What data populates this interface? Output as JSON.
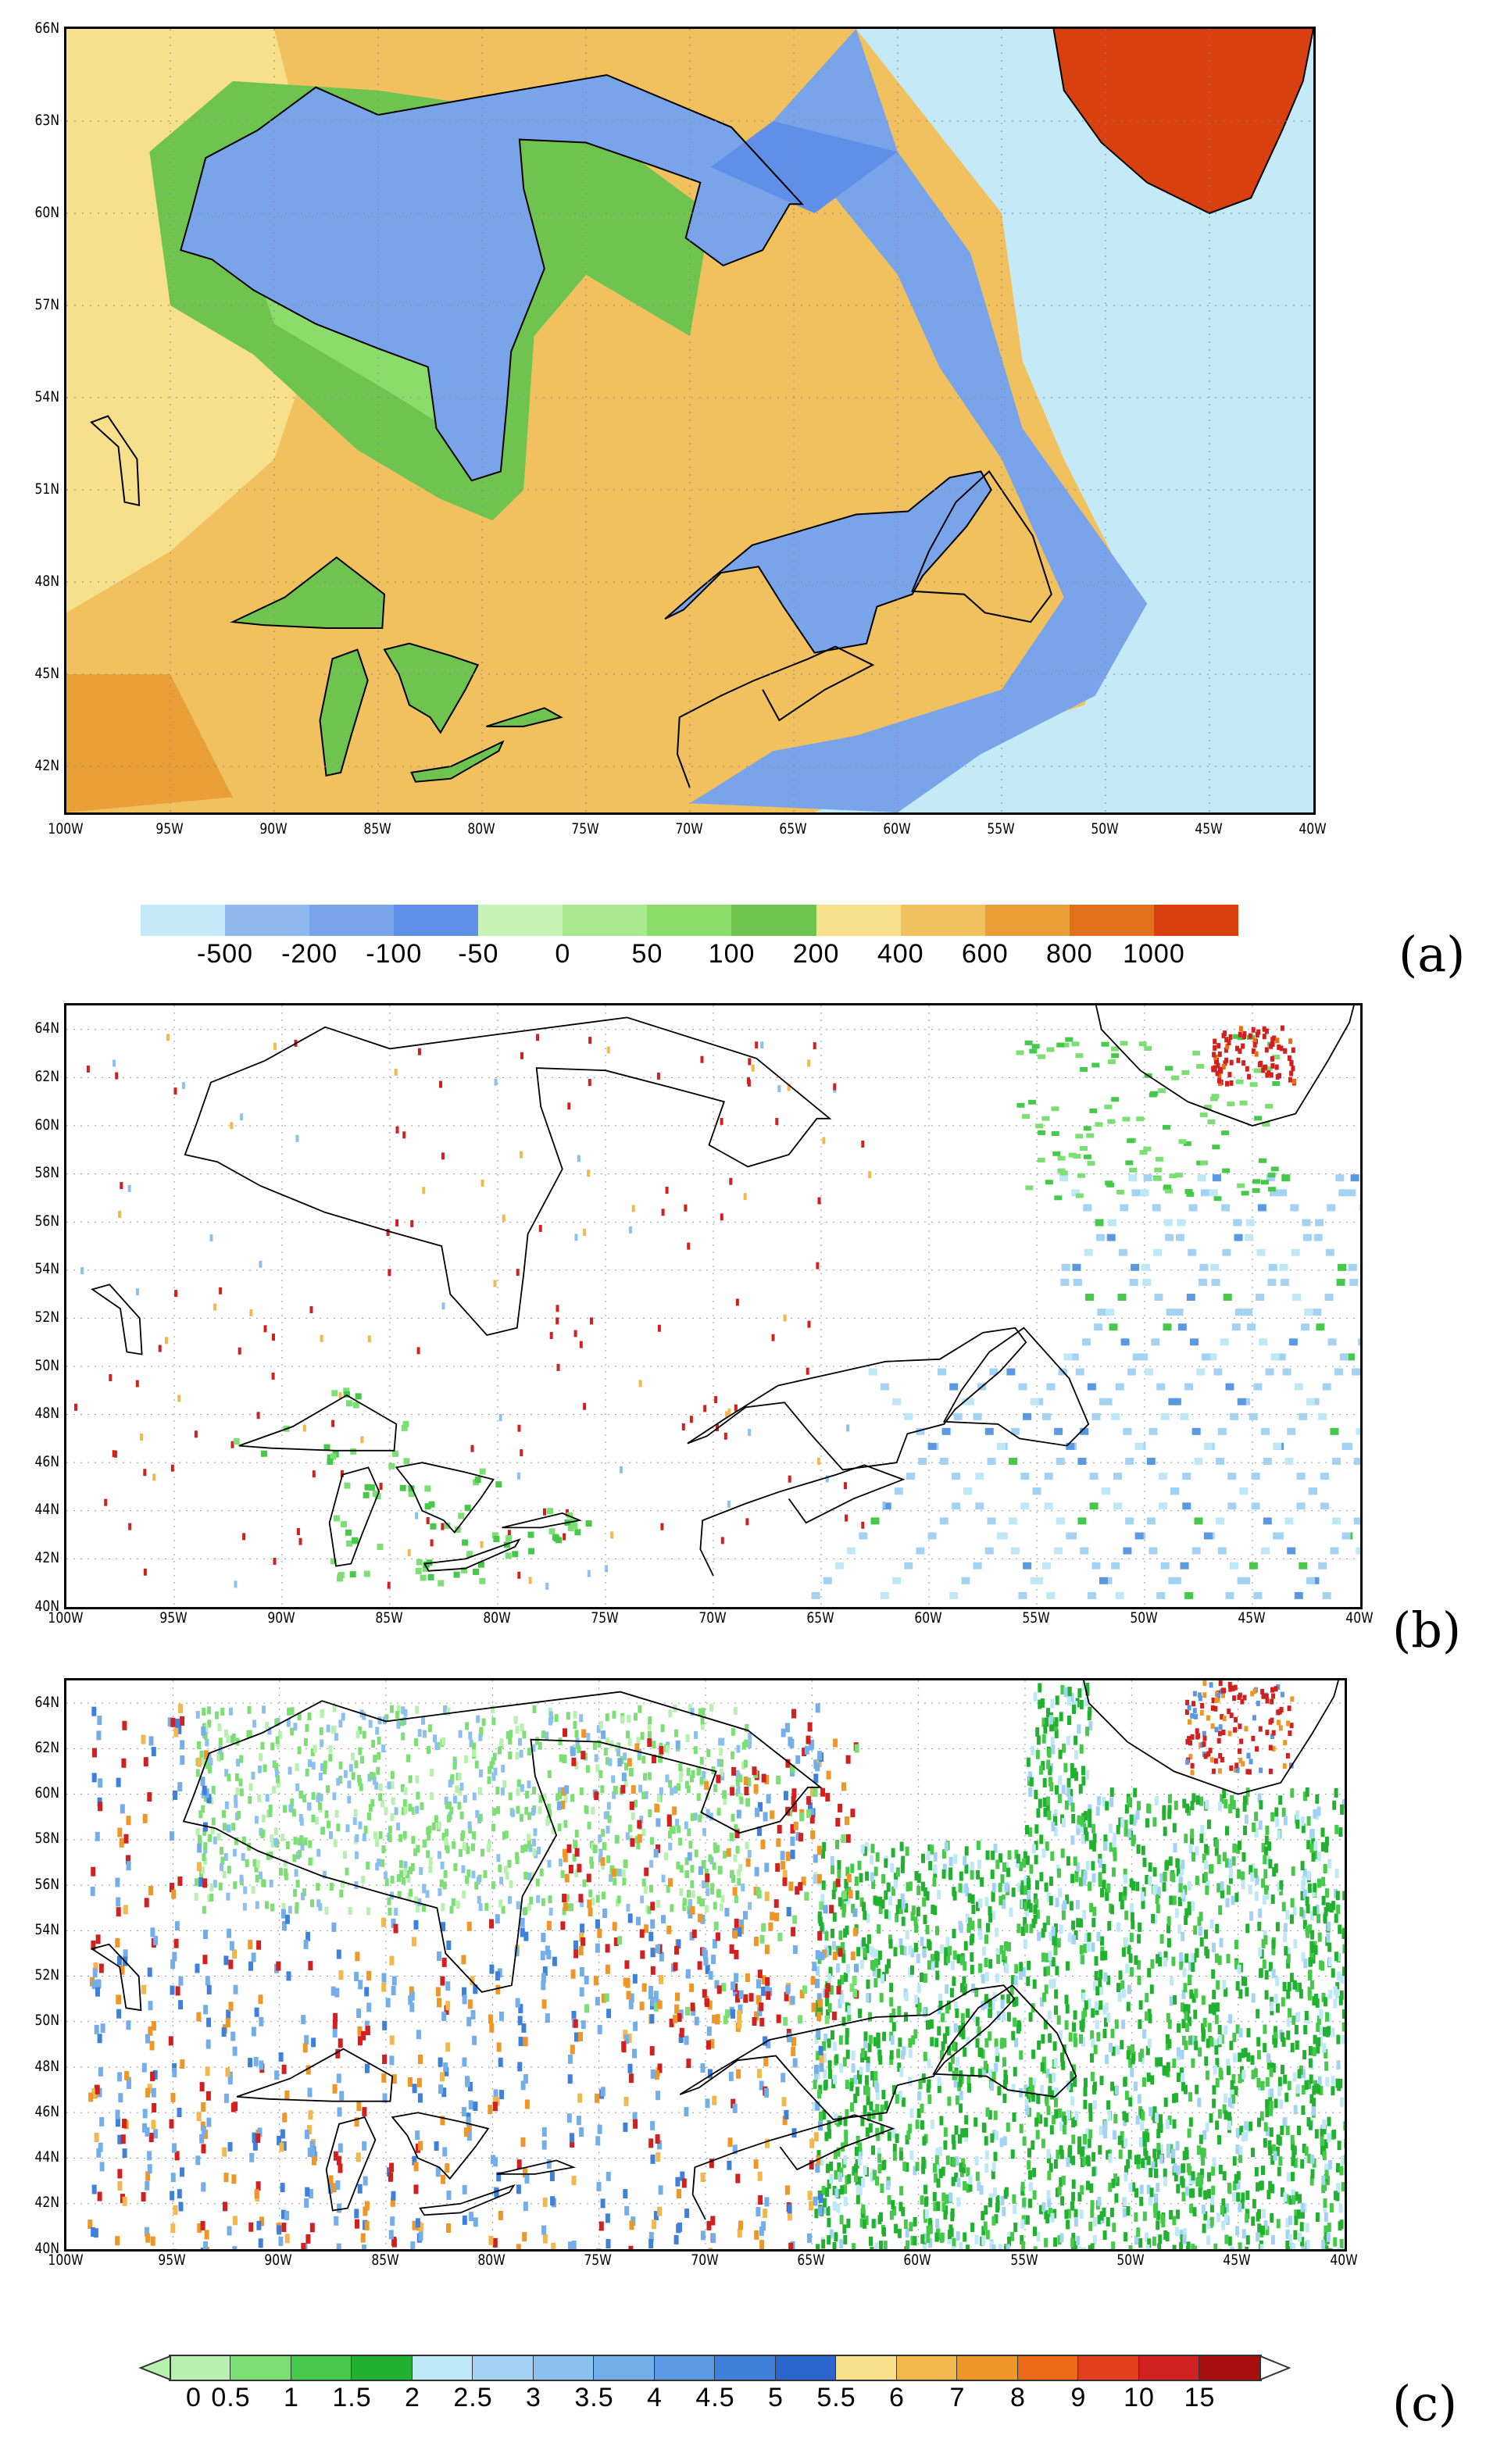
{
  "panels": [
    {
      "id": "a",
      "label": "(a)"
    },
    {
      "id": "b",
      "label": "(b)"
    },
    {
      "id": "c",
      "label": "(c)"
    }
  ],
  "axes": {
    "x_ticks": [
      "100W",
      "95W",
      "90W",
      "85W",
      "80W",
      "75W",
      "70W",
      "65W",
      "60W",
      "55W",
      "50W",
      "45W",
      "40W"
    ],
    "a_y_ticks": [
      "42N",
      "45N",
      "48N",
      "51N",
      "54N",
      "57N",
      "60N",
      "63N",
      "66N"
    ],
    "bc_y_ticks": [
      "40N",
      "42N",
      "44N",
      "46N",
      "48N",
      "50N",
      "52N",
      "54N",
      "56N",
      "58N",
      "60N",
      "62N",
      "64N"
    ],
    "a_lat_range": [
      40.5,
      66
    ],
    "bc_lat_range": [
      40,
      65
    ],
    "lon_range": [
      -100,
      -40
    ]
  },
  "colorbar_a": {
    "labels": [
      "-500",
      "-200",
      "-100",
      "-50",
      "0",
      "50",
      "100",
      "200",
      "400",
      "600",
      "800",
      "1000"
    ],
    "colors": [
      "#c4eaf7",
      "#8fb9ee",
      "#7aa4ea",
      "#5f8fe6",
      "#c8f3b6",
      "#a9ea8e",
      "#8cdc6c",
      "#6ec44e",
      "#f6e08c",
      "#f0c15e",
      "#ea9f38",
      "#e2711e",
      "#d84010"
    ]
  },
  "colorbar_c": {
    "labels": [
      "0",
      "0.5",
      "1",
      "1.5",
      "2",
      "2.5",
      "3",
      "3.5",
      "4",
      "4.5",
      "5",
      "5.5",
      "6",
      "7",
      "8",
      "9",
      "10",
      "15"
    ],
    "colors": [
      "#b8f0b0",
      "#7cdf74",
      "#46c94a",
      "#22b030",
      "#bfe8f6",
      "#a3d2f2",
      "#8cc0ee",
      "#74aee8",
      "#5a98e2",
      "#3f80da",
      "#2a66cc",
      "#f6e08c",
      "#f2b84e",
      "#ee9628",
      "#ea6a18",
      "#e2401c",
      "#d02020",
      "#a80e0e"
    ]
  }
}
